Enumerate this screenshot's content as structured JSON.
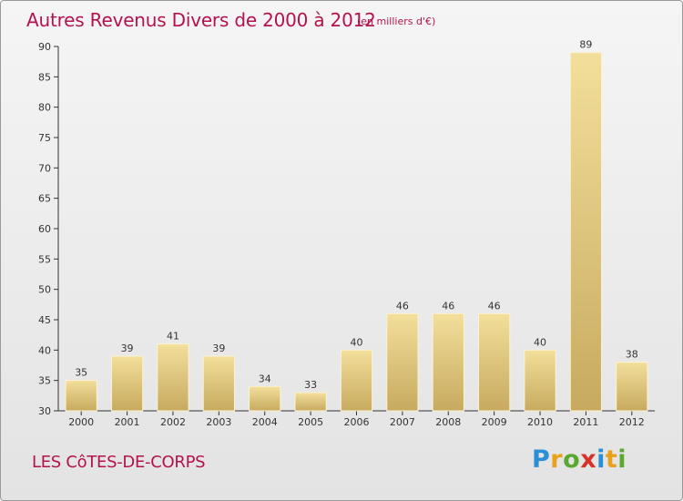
{
  "header": {
    "title": "Autres Revenus Divers de 2000 à 2012",
    "unit": "(en milliers d'€)"
  },
  "footer": {
    "commune": "LES CôTES-DE-CORPS",
    "brand_letters": [
      "P",
      "r",
      "o",
      "x",
      "i",
      "t",
      "i"
    ],
    "brand_colors": [
      "#2a8fd6",
      "#e9a11b",
      "#5aa832",
      "#d8312a",
      "#2a8fd6",
      "#e9a11b",
      "#5aa832"
    ]
  },
  "chart_data": {
    "type": "bar",
    "categories": [
      "2000",
      "2001",
      "2002",
      "2003",
      "2004",
      "2005",
      "2006",
      "2007",
      "2008",
      "2009",
      "2010",
      "2011",
      "2012"
    ],
    "values": [
      35,
      39,
      41,
      39,
      34,
      33,
      40,
      46,
      46,
      46,
      40,
      89,
      38
    ],
    "ylim": [
      30,
      90
    ],
    "yticks": [
      30,
      35,
      40,
      45,
      50,
      55,
      60,
      65,
      70,
      75,
      80,
      85,
      90
    ],
    "title": "Autres Revenus Divers de 2000 à 2012",
    "xlabel": "",
    "ylabel": "",
    "grid": false,
    "bar_color_light": "#f3df9b",
    "bar_color_dark": "#c7aa5f",
    "axis_color": "#333333"
  }
}
